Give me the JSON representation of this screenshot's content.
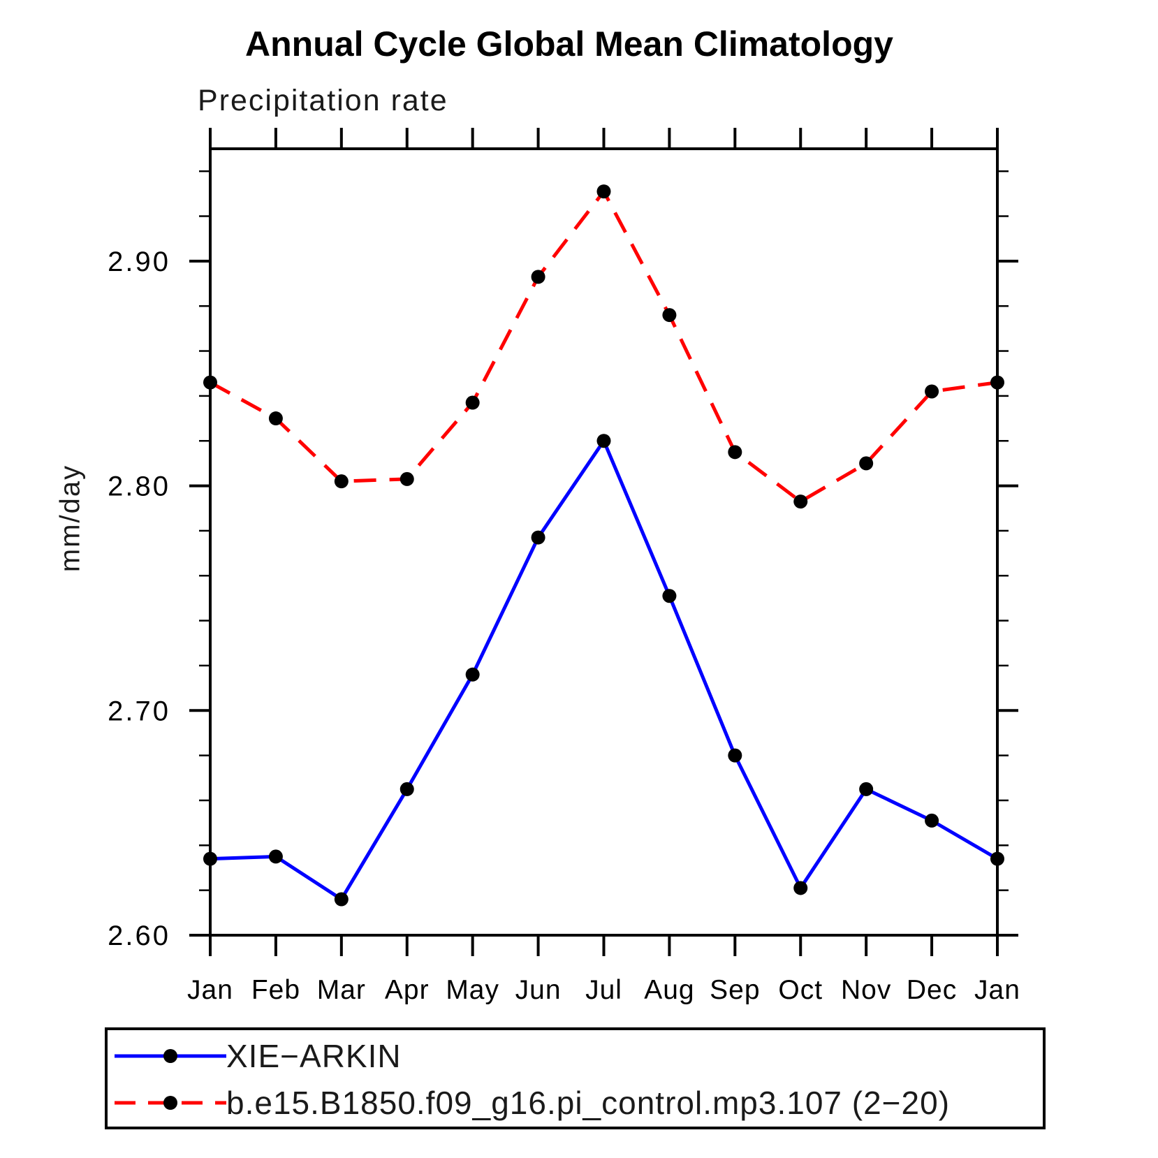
{
  "chart_data": {
    "type": "line",
    "title": "Annual Cycle Global Mean Climatology",
    "subtitle": "Precipitation rate",
    "ylabel": "mm/day",
    "xlabel": "",
    "categories": [
      "Jan",
      "Feb",
      "Mar",
      "Apr",
      "May",
      "Jun",
      "Jul",
      "Aug",
      "Sep",
      "Oct",
      "Nov",
      "Dec",
      "Jan"
    ],
    "ylim": [
      2.6,
      2.95
    ],
    "y_major_ticks": [
      2.6,
      2.7,
      2.8,
      2.9
    ],
    "y_minor_step": 0.02,
    "grid": false,
    "legend_position": "bottom-box",
    "axis_color": "#000000",
    "marker": {
      "shape": "circle",
      "color": "#000000",
      "radius": 10
    },
    "series": [
      {
        "name": "XIE−ARKIN",
        "line_color": "#0000ff",
        "line_style": "solid",
        "values": [
          2.634,
          2.635,
          2.616,
          2.665,
          2.716,
          2.777,
          2.82,
          2.751,
          2.68,
          2.621,
          2.665,
          2.651,
          2.634
        ]
      },
      {
        "name": "b.e15.B1850.f09_g16.pi_control.mp3.107 (2−20)",
        "line_color": "#ff0000",
        "line_style": "dashed",
        "values": [
          2.846,
          2.83,
          2.802,
          2.803,
          2.837,
          2.893,
          2.931,
          2.876,
          2.815,
          2.793,
          2.81,
          2.842,
          2.846
        ]
      }
    ]
  }
}
